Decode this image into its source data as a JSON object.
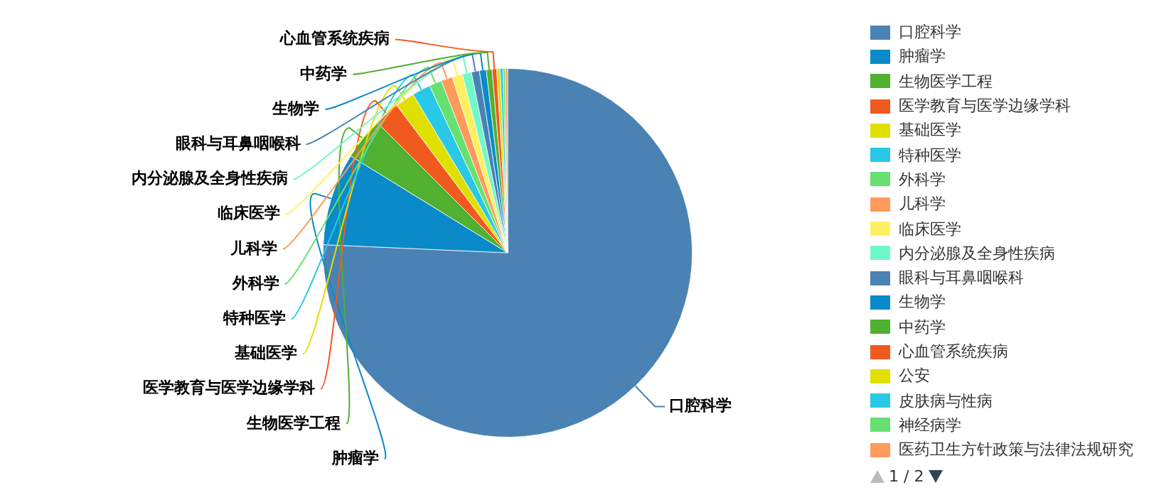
{
  "chart_data": {
    "type": "pie",
    "categories": [
      "口腔科学",
      "肿瘤学",
      "生物医学工程",
      "医学教育与医学边缘学科",
      "基础医学",
      "特种医学",
      "外科学",
      "儿科学",
      "临床医学",
      "内分泌腺及全身性疾病",
      "眼科与耳鼻咽喉科",
      "生物学",
      "中药学",
      "心血管系统疾病",
      "公安",
      "皮肤病与性病",
      "神经病学",
      "医药卫生方针政策与法律法规研究"
    ],
    "values": [
      75.7,
      8.1,
      3.7,
      2.25,
      1.7,
      1.6,
      1.1,
      1.0,
      0.9,
      0.8,
      0.7,
      0.6,
      0.5,
      0.4,
      0.3,
      0.25,
      0.2,
      0.2
    ],
    "colors": [
      "#4a82b4",
      "#0a8ac8",
      "#50b030",
      "#f05a1e",
      "#e0e000",
      "#28c8e6",
      "#66e070",
      "#ff9a5a",
      "#fff060",
      "#70f8c8",
      "#4a82b4",
      "#0a8ac8",
      "#50b030",
      "#f05a1e",
      "#e0e000",
      "#28c8e6",
      "#66e070",
      "#ff9a5a"
    ],
    "legend": "right",
    "annotations": [
      "1 / 2"
    ]
  }
}
